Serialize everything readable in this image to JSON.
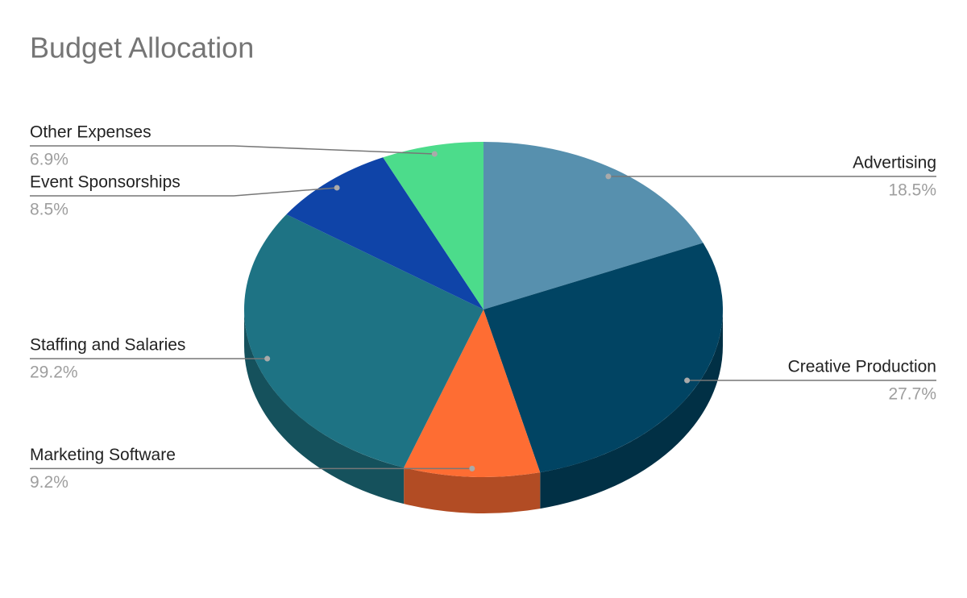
{
  "chart_data": {
    "type": "pie",
    "title": "Budget Allocation",
    "categories": [
      "Advertising",
      "Creative Production",
      "Marketing Software",
      "Staffing and Salaries",
      "Event Sponsorships",
      "Other Expenses"
    ],
    "values": [
      18.5,
      27.7,
      9.2,
      29.2,
      8.5,
      6.9
    ],
    "value_labels": [
      "18.5%",
      "27.7%",
      "9.2%",
      "29.2%",
      "8.5%",
      "6.9%"
    ],
    "colors": [
      "#5790ae",
      "#014463",
      "#fe6d33",
      "#1e7384",
      "#0f44a8",
      "#4cdc8b"
    ]
  }
}
